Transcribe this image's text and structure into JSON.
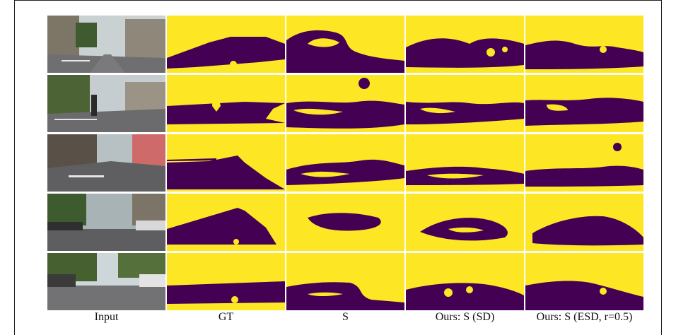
{
  "figure": {
    "columns": [
      {
        "id": "input",
        "label": "Input"
      },
      {
        "id": "gt",
        "label": "GT"
      },
      {
        "id": "s",
        "label": "S"
      },
      {
        "id": "ours_sd",
        "label": "Ours: S (SD)"
      },
      {
        "id": "ours_esd",
        "label": "Ours: S (ESD, r=0.5)"
      }
    ],
    "rows": 5,
    "colors": {
      "road_mask": "#440154",
      "background_mask": "#fde725",
      "sky": "#b8c4c8",
      "asphalt": "#6e6e70",
      "building": "#8a8478",
      "tree": "#3d5a2e"
    }
  }
}
